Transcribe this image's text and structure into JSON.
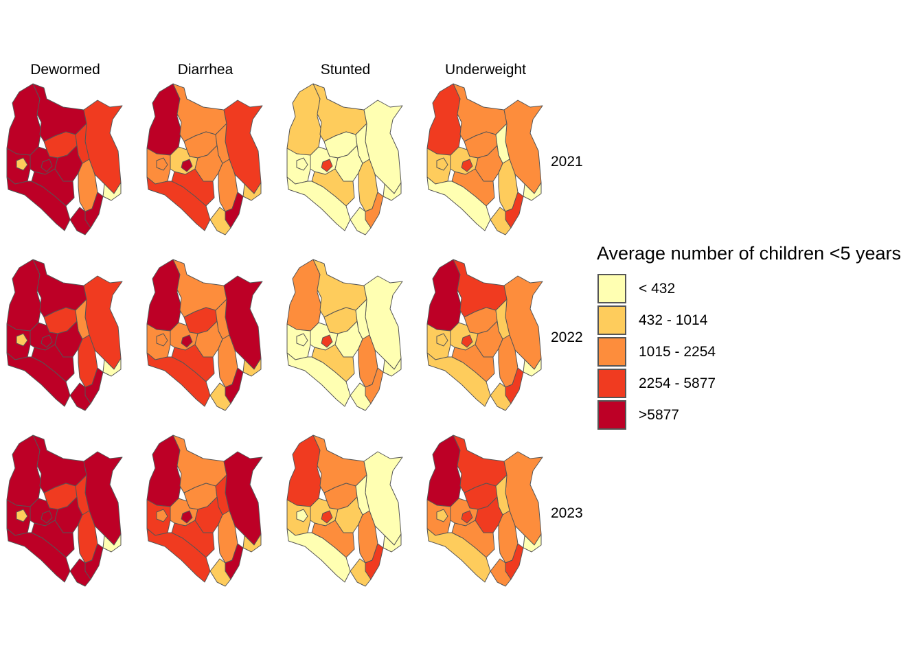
{
  "palette": [
    "#ffffb2",
    "#fecc5c",
    "#fd8d3c",
    "#f03b20",
    "#bd0026"
  ],
  "outline_color": "#555555",
  "columns": [
    {
      "label": "Dewormed"
    },
    {
      "label": "Diarrhea"
    },
    {
      "label": "Stunted"
    },
    {
      "label": "Underweight"
    }
  ],
  "rows": [
    {
      "label": "2021"
    },
    {
      "label": "2022"
    },
    {
      "label": "2023"
    }
  ],
  "legend": {
    "title": "Average number of children <5 years",
    "items": [
      {
        "label": "< 432",
        "class_index": 0
      },
      {
        "label": "432 - 1014",
        "class_index": 1
      },
      {
        "label": "1015 - 2254",
        "class_index": 2
      },
      {
        "label": "2254 - 5877",
        "class_index": 3
      },
      {
        "label": ">5877",
        "class_index": 4
      }
    ]
  },
  "region_names": [
    "northwest",
    "north-central",
    "northeast",
    "west-central",
    "central-north",
    "central",
    "central-east",
    "east",
    "tana-strip",
    "east-tip",
    "south",
    "southwest",
    "west-small",
    "center-small",
    "coast",
    "coast-south"
  ],
  "panels": {
    "Dewormed": {
      "2021": [
        4,
        4,
        3,
        4,
        3,
        4,
        3,
        4,
        2,
        0,
        4,
        4,
        1,
        4,
        4,
        4
      ],
      "2022": [
        4,
        4,
        3,
        4,
        3,
        4,
        2,
        4,
        3,
        0,
        4,
        4,
        1,
        4,
        4,
        4
      ],
      "2023": [
        4,
        4,
        4,
        4,
        3,
        4,
        3,
        4,
        3,
        0,
        4,
        4,
        1,
        4,
        4,
        4
      ]
    },
    "Diarrhea": {
      "2021": [
        4,
        2,
        3,
        2,
        2,
        1,
        2,
        2,
        2,
        1,
        3,
        3,
        2,
        4,
        4,
        1
      ],
      "2022": [
        4,
        2,
        4,
        2,
        3,
        2,
        2,
        2,
        2,
        1,
        3,
        3,
        2,
        4,
        4,
        1
      ],
      "2023": [
        4,
        2,
        4,
        3,
        2,
        2,
        3,
        3,
        2,
        1,
        3,
        3,
        2,
        4,
        4,
        1
      ]
    },
    "Stunted": {
      "2021": [
        1,
        1,
        0,
        0,
        0,
        0,
        0,
        0,
        1,
        0,
        1,
        0,
        0,
        3,
        2,
        0
      ],
      "2022": [
        2,
        1,
        0,
        0,
        1,
        0,
        0,
        0,
        2,
        0,
        1,
        0,
        0,
        3,
        2,
        0
      ],
      "2023": [
        3,
        2,
        0,
        1,
        2,
        1,
        0,
        1,
        2,
        0,
        2,
        0,
        0,
        3,
        3,
        1
      ]
    },
    "Underweight": {
      "2021": [
        3,
        2,
        2,
        1,
        2,
        1,
        0,
        2,
        1,
        0,
        2,
        0,
        1,
        3,
        3,
        1
      ],
      "2022": [
        4,
        3,
        2,
        1,
        2,
        1,
        1,
        2,
        2,
        0,
        2,
        1,
        1,
        3,
        3,
        1
      ],
      "2023": [
        4,
        3,
        2,
        2,
        3,
        2,
        1,
        3,
        2,
        0,
        2,
        1,
        1,
        3,
        3,
        2
      ]
    }
  }
}
